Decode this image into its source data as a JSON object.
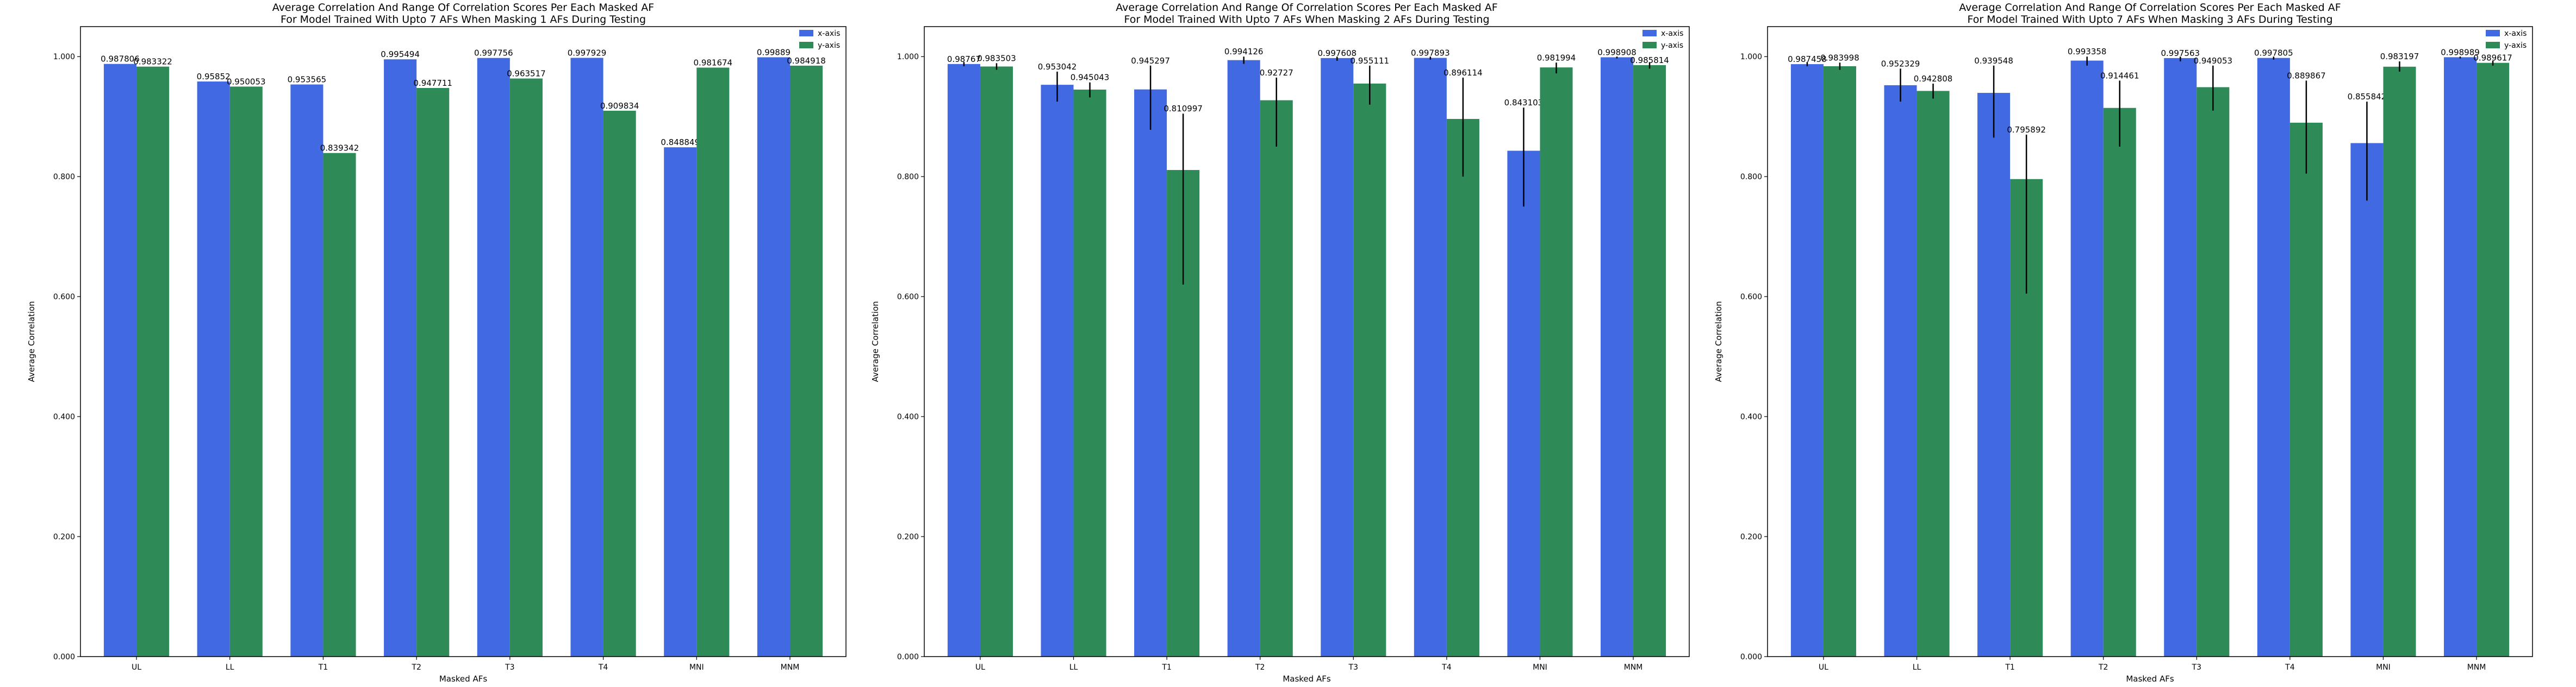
{
  "colors": {
    "x_axis": "#4169e1",
    "y_axis": "#2e8b57",
    "error_bar": "#000000"
  },
  "chart_data": [
    {
      "type": "bar",
      "title": "Average Correlation And Range Of Correlation Scores Per Each Masked AF\nFor Model Trained With Upto 7 AFs When Masking 1 AFs During Testing",
      "xlabel": "Masked AFs",
      "ylabel": "Average Correlation",
      "ylim": [
        0,
        1.05
      ],
      "yticks": [
        "0.000",
        "0.200",
        "0.400",
        "0.600",
        "0.800",
        "1.000"
      ],
      "legend_position": "top-right",
      "categories": [
        "UL",
        "LL",
        "T1",
        "T2",
        "T3",
        "T4",
        "MNI",
        "MNM"
      ],
      "series": [
        {
          "name": "x-axis",
          "values": [
            0.987806,
            0.95852,
            0.953565,
            0.995494,
            0.997756,
            0.997929,
            0.848849,
            0.99889
          ],
          "labels": [
            "0.987806",
            "0.95852",
            "0.953565",
            "0.995494",
            "0.997756",
            "0.997929",
            "0.848849",
            "0.99889"
          ],
          "error": [
            null,
            null,
            null,
            null,
            null,
            null,
            null,
            null
          ]
        },
        {
          "name": "y-axis",
          "values": [
            0.983322,
            0.950053,
            0.839342,
            0.947711,
            0.963517,
            0.909834,
            0.981674,
            0.984918
          ],
          "labels": [
            "0.983322",
            "0.950053",
            "0.839342",
            "0.947711",
            "0.963517",
            "0.909834",
            "0.981674",
            "0.984918"
          ],
          "error": [
            null,
            null,
            null,
            null,
            null,
            null,
            null,
            null
          ]
        }
      ]
    },
    {
      "type": "bar",
      "title": "Average Correlation And Range Of Correlation Scores Per Each Masked AF\nFor Model Trained With Upto 7 AFs When Masking 2 AFs During Testing",
      "xlabel": "Masked AFs",
      "ylabel": "Average Correlation",
      "ylim": [
        0,
        1.05
      ],
      "yticks": [
        "0.000",
        "0.200",
        "0.400",
        "0.600",
        "0.800",
        "1.000"
      ],
      "legend_position": "top-right",
      "categories": [
        "UL",
        "LL",
        "T1",
        "T2",
        "T3",
        "T4",
        "MNI",
        "MNM"
      ],
      "series": [
        {
          "name": "x-axis",
          "values": [
            0.98767,
            0.953042,
            0.945297,
            0.994126,
            0.997608,
            0.997893,
            0.843103,
            0.998908
          ],
          "labels": [
            "0.98767",
            "0.953042",
            "0.945297",
            "0.994126",
            "0.997608",
            "0.997893",
            "0.843103",
            "0.998908"
          ],
          "error": [
            [
              0.984,
              0.991
            ],
            [
              0.925,
              0.975
            ],
            [
              0.878,
              0.985
            ],
            [
              0.988,
              1.0
            ],
            [
              0.993,
              1.0
            ],
            [
              0.995,
              1.0
            ],
            [
              0.75,
              0.915
            ],
            [
              0.997,
              1.0
            ]
          ]
        },
        {
          "name": "y-axis",
          "values": [
            0.983503,
            0.945043,
            0.810997,
            0.92727,
            0.955111,
            0.896114,
            0.981994,
            0.985814
          ],
          "labels": [
            "0.983503",
            "0.945043",
            "0.810997",
            "0.92727",
            "0.955111",
            "0.896114",
            "0.981994",
            "0.985814"
          ],
          "error": [
            [
              0.978,
              0.989
            ],
            [
              0.932,
              0.957
            ],
            [
              0.62,
              0.905
            ],
            [
              0.85,
              0.965
            ],
            [
              0.92,
              0.985
            ],
            [
              0.8,
              0.965
            ],
            [
              0.972,
              0.99
            ],
            [
              0.98,
              0.99
            ]
          ]
        }
      ]
    },
    {
      "type": "bar",
      "title": "Average Correlation And Range Of Correlation Scores Per Each Masked AF\nFor Model Trained With Upto 7 AFs When Masking 3 AFs During Testing",
      "xlabel": "Masked AFs",
      "ylabel": "Average Correlation",
      "ylim": [
        0,
        1.05
      ],
      "yticks": [
        "0.000",
        "0.200",
        "0.400",
        "0.600",
        "0.800",
        "1.000"
      ],
      "legend_position": "top-right",
      "categories": [
        "UL",
        "LL",
        "T1",
        "T2",
        "T3",
        "T4",
        "MNI",
        "MNM"
      ],
      "series": [
        {
          "name": "x-axis",
          "values": [
            0.987458,
            0.952329,
            0.939548,
            0.993358,
            0.997563,
            0.997805,
            0.855842,
            0.998989
          ],
          "labels": [
            "0.987458",
            "0.952329",
            "0.939548",
            "0.993358",
            "0.997563",
            "0.997805",
            "0.855842",
            "0.998989"
          ],
          "error": [
            [
              0.984,
              0.991
            ],
            [
              0.925,
              0.98
            ],
            [
              0.865,
              0.985
            ],
            [
              0.985,
              1.0
            ],
            [
              0.992,
              1.0
            ],
            [
              0.995,
              1.0
            ],
            [
              0.76,
              0.925
            ],
            [
              0.997,
              1.0
            ]
          ]
        },
        {
          "name": "y-axis",
          "values": [
            0.983998,
            0.942808,
            0.795892,
            0.914461,
            0.949053,
            0.889867,
            0.983197,
            0.989617
          ],
          "labels": [
            "0.983998",
            "0.942808",
            "0.795892",
            "0.914461",
            "0.949053",
            "0.889867",
            "0.983197",
            "0.989617"
          ],
          "error": [
            [
              0.978,
              0.99
            ],
            [
              0.93,
              0.955
            ],
            [
              0.605,
              0.87
            ],
            [
              0.85,
              0.96
            ],
            [
              0.91,
              0.985
            ],
            [
              0.805,
              0.96
            ],
            [
              0.975,
              0.992
            ],
            [
              0.985,
              0.993
            ]
          ]
        }
      ]
    }
  ]
}
